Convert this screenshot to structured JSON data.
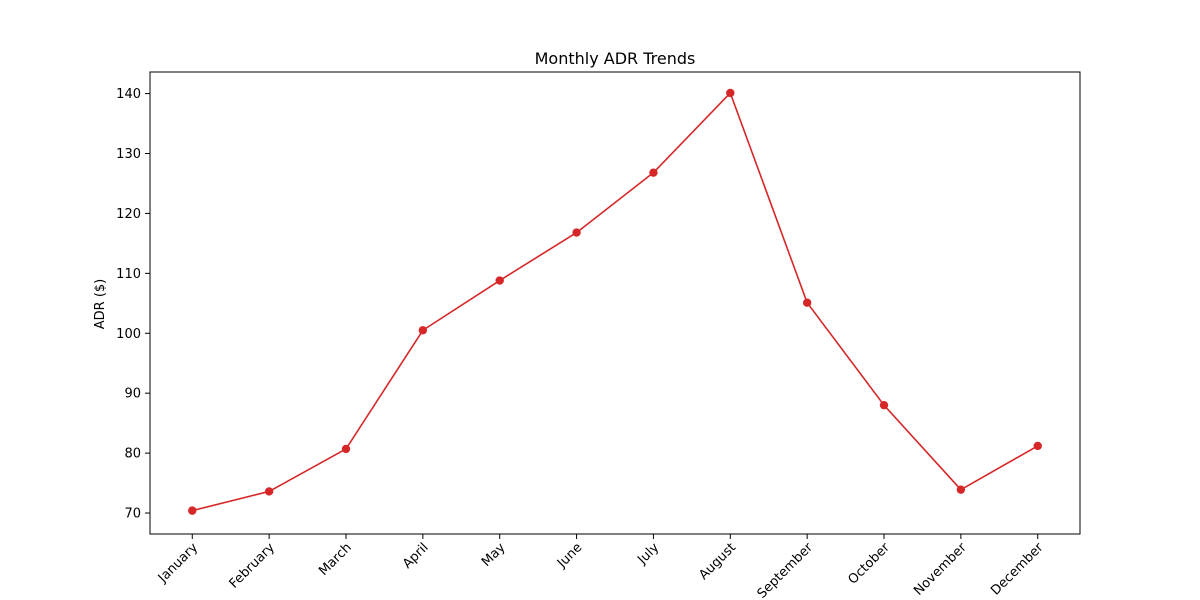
{
  "chart_data": {
    "type": "line",
    "title": "Monthly ADR Trends",
    "xlabel": "",
    "ylabel": "ADR ($)",
    "categories": [
      "January",
      "February",
      "March",
      "April",
      "May",
      "June",
      "July",
      "August",
      "September",
      "October",
      "November",
      "December"
    ],
    "series": [
      {
        "name": "",
        "color": "#d62728",
        "marker": "circle",
        "values": [
          70.4,
          73.6,
          80.7,
          100.5,
          108.8,
          116.8,
          126.8,
          140.1,
          105.1,
          88.0,
          73.9,
          81.2
        ]
      }
    ],
    "ylim": [
      66.5,
      143.6
    ],
    "yticks": [
      70,
      80,
      90,
      100,
      110,
      120,
      130,
      140
    ],
    "grid": false,
    "legend": "none",
    "xtick_rotation": 45
  }
}
